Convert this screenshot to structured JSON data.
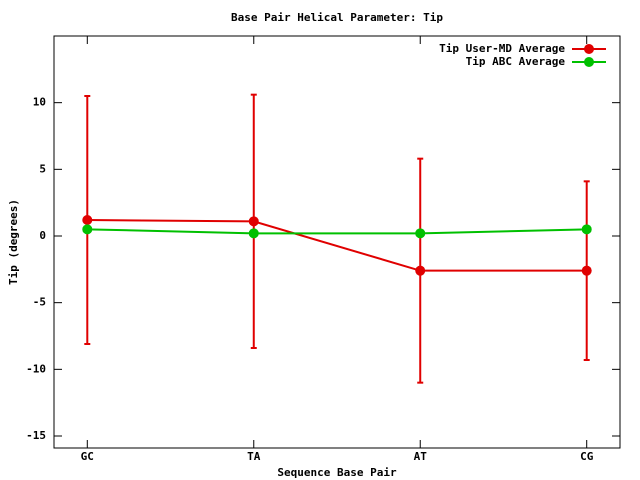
{
  "chart_data": {
    "type": "line",
    "title": "Base Pair Helical Parameter: Tip",
    "x_label": "Sequence Base Pair",
    "y_label": "Tip (degrees)",
    "categories": [
      "GC",
      "TA",
      "AT",
      "CG"
    ],
    "series": [
      {
        "name": "Tip User-MD Average",
        "color": "#e00000",
        "values": [
          1.2,
          1.1,
          -2.6,
          -2.6
        ],
        "errors": [
          9.3,
          9.5,
          8.4,
          6.7
        ]
      },
      {
        "name": "Tip ABC Average",
        "color": "#00c000",
        "values": [
          0.5,
          0.2,
          0.2,
          0.5
        ]
      }
    ],
    "ylim": [
      -15.9,
      15
    ],
    "yticks": [
      -15,
      -10,
      -5,
      0,
      5,
      10
    ],
    "legend": "top-right"
  }
}
